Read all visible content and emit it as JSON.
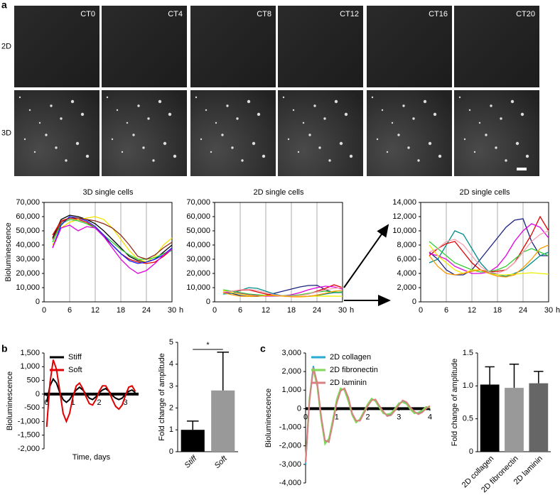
{
  "panel_labels": [
    "a",
    "b",
    "c"
  ],
  "micrographs": {
    "columns": [
      "CT0",
      "CT4",
      "CT8",
      "CT12",
      "CT16",
      "CT20"
    ],
    "rows": [
      "2D",
      "3D"
    ]
  },
  "chart_data": [
    {
      "type": "line",
      "title": "3D single cells",
      "ylabel": "Bioluminescence",
      "xlabel": "h",
      "grid": "x",
      "x": [
        2,
        4,
        6,
        8,
        10,
        12,
        14,
        16,
        18,
        20,
        22,
        24,
        26,
        28,
        30
      ],
      "xlim": [
        0,
        30
      ],
      "xticks": [
        0,
        6,
        12,
        18,
        24,
        30
      ],
      "ylim": [
        0,
        70000
      ],
      "yticks": [
        0,
        {
          "value": 10000,
          "label": "10,000"
        },
        {
          "value": 20000,
          "label": "20,000"
        },
        {
          "value": 30000,
          "label": "30,000"
        },
        {
          "value": 40000,
          "label": "40,000"
        },
        {
          "value": 50000,
          "label": "50,000"
        },
        {
          "value": 60000,
          "label": "60,000"
        },
        {
          "value": 70000,
          "label": "70,000"
        }
      ],
      "series": [
        {
          "color": "#000000",
          "values": [
            45000,
            58000,
            61000,
            60000,
            58000,
            55000,
            50000,
            44000,
            38000,
            32000,
            29000,
            28000,
            30000,
            35000,
            40000
          ]
        },
        {
          "color": "#e00000",
          "values": [
            47000,
            57000,
            59000,
            58000,
            56000,
            52000,
            46000,
            40000,
            34000,
            30000,
            28000,
            27000,
            28000,
            32000,
            37000
          ]
        },
        {
          "color": "#f5e400",
          "values": [
            40000,
            52000,
            56000,
            58000,
            59000,
            60000,
            58000,
            52000,
            44000,
            36000,
            30000,
            28000,
            32000,
            40000,
            45000
          ]
        },
        {
          "color": "#33cc33",
          "values": [
            42000,
            55000,
            58000,
            57000,
            55000,
            52000,
            47000,
            42000,
            37000,
            33000,
            30000,
            30000,
            31000,
            34000,
            36000
          ]
        },
        {
          "color": "#1a1aff",
          "values": [
            38000,
            54000,
            60000,
            59000,
            57000,
            53000,
            47000,
            40000,
            34000,
            29000,
            27000,
            28000,
            30000,
            33000,
            38000
          ]
        },
        {
          "color": "#e000e0",
          "values": [
            38000,
            52000,
            54000,
            50000,
            53000,
            52000,
            46000,
            38000,
            30000,
            24000,
            20000,
            22000,
            27000,
            33000,
            37000
          ]
        },
        {
          "color": "#8b2b1a",
          "values": [
            44000,
            56000,
            59000,
            59000,
            58000,
            57000,
            55000,
            52000,
            47000,
            40000,
            32000,
            30000,
            33000,
            38000,
            42000
          ]
        }
      ]
    },
    {
      "type": "line",
      "title": "2D single cells",
      "xlabel": "h",
      "grid": "x",
      "x": [
        2,
        4,
        6,
        8,
        10,
        12,
        14,
        16,
        18,
        20,
        22,
        24,
        26,
        28,
        30
      ],
      "xlim": [
        0,
        30
      ],
      "xticks": [
        0,
        6,
        12,
        18,
        24,
        30
      ],
      "ylim": [
        0,
        70000
      ],
      "yticks": [
        0,
        {
          "value": 10000,
          "label": "10,000"
        },
        {
          "value": 20000,
          "label": "20,000"
        },
        {
          "value": 30000,
          "label": "30,000"
        },
        {
          "value": 40000,
          "label": "40,000"
        },
        {
          "value": 50000,
          "label": "50,000"
        },
        {
          "value": 60000,
          "label": "60,000"
        },
        {
          "value": 70000,
          "label": "70,000"
        }
      ],
      "series": [
        {
          "color": "#1a237e",
          "values": [
            7000,
            6000,
            4500,
            3800,
            3800,
            4500,
            6000,
            7500,
            9000,
            10500,
            11500,
            11700,
            8500,
            6500,
            6500
          ]
        },
        {
          "color": "#008b8b",
          "values": [
            5500,
            6000,
            8000,
            10000,
            9500,
            7500,
            5500,
            4200,
            3800,
            3600,
            4000,
            4500,
            5500,
            6500,
            7000
          ]
        },
        {
          "color": "#e00000",
          "values": [
            6500,
            7500,
            8200,
            8500,
            7000,
            5500,
            4500,
            4200,
            4300,
            4500,
            5500,
            7500,
            9500,
            12000,
            10000
          ]
        },
        {
          "color": "#e000e0",
          "values": [
            6800,
            6500,
            6000,
            5000,
            4500,
            4000,
            4000,
            4200,
            5000,
            6500,
            8500,
            10000,
            11000,
            10500,
            9000
          ]
        },
        {
          "color": "#33cc33",
          "values": [
            8500,
            7500,
            6500,
            5500,
            5000,
            4500,
            4200,
            4300,
            4500,
            5000,
            6000,
            7000,
            7500,
            7000,
            6500
          ]
        },
        {
          "color": "#eeee00",
          "values": [
            8000,
            6500,
            5500,
            4500,
            4000,
            4500,
            4500,
            4000,
            3800,
            3800,
            3900,
            4000,
            4100,
            4000,
            3900
          ]
        },
        {
          "color": "#f4a0b0",
          "values": [
            7000,
            7500,
            8500,
            8800,
            8000,
            6500,
            5000,
            4200,
            4000,
            4500,
            5500,
            7000,
            8500,
            9500,
            10000
          ]
        },
        {
          "color": "#ff9900",
          "values": [
            6500,
            5000,
            4000,
            3800,
            4000,
            4300,
            4500,
            4000,
            3600,
            3500,
            3800,
            4800,
            6000,
            7500,
            8000
          ]
        }
      ]
    },
    {
      "type": "line",
      "title": "2D single cells",
      "xlabel": "h",
      "grid": "x",
      "x": [
        2,
        4,
        6,
        8,
        10,
        12,
        14,
        16,
        18,
        20,
        22,
        24,
        26,
        28,
        30
      ],
      "xlim": [
        0,
        30
      ],
      "xticks": [
        0,
        6,
        12,
        18,
        24,
        30
      ],
      "ylim": [
        0,
        14000
      ],
      "yticks": [
        0,
        {
          "value": 2000,
          "label": "2,000"
        },
        {
          "value": 4000,
          "label": "4,000"
        },
        {
          "value": 6000,
          "label": "6,000"
        },
        {
          "value": 8000,
          "label": "8,000"
        },
        {
          "value": 10000,
          "label": "10,000"
        },
        {
          "value": 12000,
          "label": "12,000"
        },
        {
          "value": 14000,
          "label": "14,000"
        }
      ],
      "series": [
        {
          "color": "#1a237e",
          "values": [
            7000,
            6000,
            4500,
            3800,
            3800,
            4500,
            6000,
            7500,
            9000,
            10500,
            11500,
            11700,
            8500,
            6500,
            6500
          ]
        },
        {
          "color": "#008b8b",
          "values": [
            5500,
            6000,
            8000,
            10000,
            9500,
            7500,
            5500,
            4200,
            3800,
            3600,
            4000,
            4500,
            5500,
            6500,
            7000
          ]
        },
        {
          "color": "#e00000",
          "values": [
            6500,
            7500,
            8200,
            8500,
            7000,
            5500,
            4500,
            4200,
            4300,
            4500,
            5500,
            7500,
            9500,
            12000,
            10000
          ]
        },
        {
          "color": "#e000e0",
          "values": [
            6800,
            6500,
            6000,
            5000,
            4500,
            4000,
            4000,
            4200,
            5000,
            6500,
            8500,
            10000,
            11000,
            10500,
            9000
          ]
        },
        {
          "color": "#33cc33",
          "values": [
            8500,
            7500,
            6500,
            5500,
            5000,
            4500,
            4200,
            4300,
            4500,
            5000,
            6000,
            7000,
            7500,
            7000,
            6500
          ]
        },
        {
          "color": "#eeee00",
          "values": [
            8000,
            6500,
            5500,
            4500,
            4000,
            4500,
            4500,
            4000,
            3800,
            3800,
            3900,
            4000,
            4100,
            4000,
            3900
          ]
        },
        {
          "color": "#f4a0b0",
          "values": [
            7000,
            7500,
            8500,
            8800,
            8000,
            6500,
            5000,
            4200,
            4000,
            4500,
            5500,
            7000,
            8500,
            9500,
            10000
          ]
        },
        {
          "color": "#ff9900",
          "values": [
            6500,
            5000,
            4000,
            3800,
            4000,
            4300,
            4500,
            4000,
            3600,
            3500,
            3800,
            4800,
            6000,
            7500,
            8000
          ]
        }
      ]
    },
    {
      "type": "line",
      "ylabel": "Bioluminescence",
      "xlabel": "Time, days",
      "legend": "upper left",
      "x": [
        0,
        0.125,
        0.25,
        0.375,
        0.5,
        0.625,
        0.75,
        0.875,
        1,
        1.125,
        1.25,
        1.375,
        1.5,
        1.625,
        1.75,
        1.875,
        2,
        2.125,
        2.25,
        2.375,
        2.5,
        2.625,
        2.75,
        2.875,
        3,
        3.125,
        3.25,
        3.375
      ],
      "xlim": [
        -0.1,
        3.5
      ],
      "xticks": [
        0,
        1,
        2,
        3
      ],
      "ylim": [
        -2000,
        1500
      ],
      "yticks": [
        {
          "value": -2000,
          "label": "-2,000"
        },
        {
          "value": -1500,
          "label": "-1,500"
        },
        {
          "value": -1000,
          "label": "-1,000"
        },
        -500,
        0,
        500,
        {
          "value": 1000,
          "label": "1,000"
        },
        {
          "value": 1500,
          "label": "1,500"
        }
      ],
      "series": [
        {
          "name": "Stiff",
          "color": "#000000",
          "values": [
            -300,
            300,
            550,
            400,
            50,
            -200,
            -300,
            -200,
            0,
            150,
            250,
            150,
            0,
            -150,
            -200,
            -100,
            50,
            150,
            200,
            100,
            -50,
            -150,
            -200,
            -150,
            0,
            100,
            150,
            50
          ]
        },
        {
          "name": "Soft",
          "color": "#e00000",
          "values": [
            -1200,
            400,
            1250,
            900,
            100,
            -700,
            -1000,
            -700,
            -100,
            300,
            400,
            200,
            -100,
            -350,
            -400,
            -200,
            100,
            300,
            300,
            100,
            -200,
            -450,
            -550,
            -400,
            -50,
            250,
            300,
            100
          ]
        }
      ]
    },
    {
      "type": "bar",
      "ylabel": "Fold change of amplitude",
      "categories": [
        "Stiff",
        "Soft"
      ],
      "category_style": "italic",
      "values": [
        1.0,
        2.8
      ],
      "errors": [
        0.4,
        1.75
      ],
      "colors": [
        "#000000",
        "#999999"
      ],
      "annotation": "*",
      "ylim": [
        0,
        5
      ],
      "yticks": [
        0,
        1,
        2,
        3,
        4,
        5
      ]
    },
    {
      "type": "line",
      "ylabel": "Bioluminescence",
      "legend": "upper left",
      "x": [
        0,
        0.125,
        0.25,
        0.375,
        0.5,
        0.625,
        0.75,
        0.875,
        1,
        1.125,
        1.25,
        1.375,
        1.5,
        1.625,
        1.75,
        1.875,
        2,
        2.125,
        2.25,
        2.375,
        2.5,
        2.625,
        2.75,
        2.875,
        3,
        3.125,
        3.25,
        3.375,
        3.5,
        3.625,
        3.75,
        3.875,
        4
      ],
      "xlim": [
        0,
        4
      ],
      "xticks": [
        0,
        1,
        2,
        3,
        4
      ],
      "ylim": [
        -4000,
        3000
      ],
      "yticks": [
        {
          "value": -4000,
          "label": "-4,000"
        },
        {
          "value": -3000,
          "label": "-3,000"
        },
        {
          "value": -2000,
          "label": "-2,000"
        },
        {
          "value": -1000,
          "label": "-1,000"
        },
        0,
        {
          "value": 1000,
          "label": "1,000"
        },
        {
          "value": 2000,
          "label": "2,000"
        },
        {
          "value": 3000,
          "label": "3,000"
        }
      ],
      "series": [
        {
          "name": "2D collagen",
          "color": "#29a9d6",
          "values": [
            -3000,
            500,
            2300,
            1300,
            -500,
            -1800,
            -1700,
            -700,
            400,
            1000,
            1050,
            500,
            -300,
            -700,
            -600,
            -200,
            200,
            500,
            450,
            100,
            -200,
            -350,
            -300,
            -50,
            250,
            400,
            300,
            0,
            -200,
            -250,
            -150,
            50,
            100
          ]
        },
        {
          "name": "2D fibronectin",
          "color": "#7ed957",
          "values": [
            -2800,
            600,
            2100,
            1200,
            -600,
            -1900,
            -1600,
            -600,
            500,
            1100,
            1000,
            400,
            -350,
            -750,
            -550,
            -150,
            250,
            550,
            400,
            50,
            -250,
            -300,
            -250,
            0,
            300,
            350,
            250,
            -50,
            -250,
            -200,
            -100,
            100,
            50
          ]
        },
        {
          "name": "2D laminin",
          "color": "#d98080",
          "values": [
            -2900,
            400,
            2200,
            1400,
            -400,
            -1700,
            -1800,
            -800,
            300,
            950,
            1100,
            600,
            -250,
            -650,
            -650,
            -250,
            150,
            450,
            500,
            150,
            -150,
            -400,
            -350,
            -100,
            200,
            450,
            350,
            50,
            -150,
            -300,
            -200,
            0,
            150
          ]
        }
      ]
    },
    {
      "type": "bar",
      "ylabel": "Fold change of amplitude",
      "categories": [
        "2D collagen",
        "2D fibronectin",
        "2D laminin"
      ],
      "values": [
        1.02,
        0.97,
        1.04
      ],
      "errors": [
        0.27,
        0.36,
        0.18
      ],
      "colors": [
        "#000000",
        "#999999",
        "#666666"
      ],
      "ylim": [
        0,
        1.5
      ],
      "yticks": [
        0,
        0.5,
        {
          "value": 1.0,
          "label": "1.0"
        },
        1.5
      ]
    }
  ]
}
